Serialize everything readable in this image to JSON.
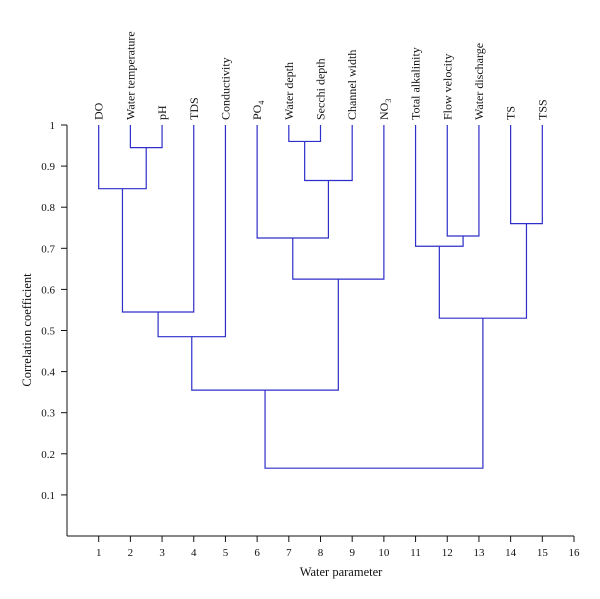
{
  "chart_data": {
    "type": "dendrogram",
    "xlabel": "Water parameter",
    "ylabel": "Correlation coefficient",
    "xlim": [
      0,
      16
    ],
    "ylim": [
      0,
      1
    ],
    "x_ticks": [
      1,
      2,
      3,
      4,
      5,
      6,
      7,
      8,
      9,
      10,
      11,
      12,
      13,
      14,
      15,
      16
    ],
    "y_ticks": [
      "0.1",
      "0.2",
      "0.3",
      "0.4",
      "0.5",
      "0.6",
      "0.7",
      "0.8",
      "0.9",
      "1"
    ],
    "link_color": "#2e2ec9",
    "leaves": [
      {
        "x": 1,
        "label": "DO"
      },
      {
        "x": 2,
        "label": "Water temperature"
      },
      {
        "x": 3,
        "label": "pH"
      },
      {
        "x": 4,
        "label": "TDS"
      },
      {
        "x": 5,
        "label": "Conductivity"
      },
      {
        "x": 6,
        "label": "PO",
        "sub": "4"
      },
      {
        "x": 7,
        "label": "Water depth"
      },
      {
        "x": 8,
        "label": "Secchi depth"
      },
      {
        "x": 9,
        "label": "Channel width"
      },
      {
        "x": 10,
        "label": "NO",
        "sub": "3"
      },
      {
        "x": 11,
        "label": "Total alkalinity"
      },
      {
        "x": 12,
        "label": "Flow velocity"
      },
      {
        "x": 13,
        "label": "Water discharge"
      },
      {
        "x": 14,
        "label": "TS"
      },
      {
        "x": 15,
        "label": "TSS"
      }
    ],
    "merges": [
      {
        "left": 2,
        "right": 3,
        "height": 0.945
      },
      {
        "left": 1,
        "right": 2.5,
        "height": 0.845
      },
      {
        "left": 1.75,
        "right": 4,
        "height": 0.545
      },
      {
        "left": 2.875,
        "right": 5,
        "height": 0.485
      },
      {
        "left": 7,
        "right": 8,
        "height": 0.96
      },
      {
        "left": 7.5,
        "right": 9,
        "height": 0.865
      },
      {
        "left": 6,
        "right": 8.25,
        "height": 0.725
      },
      {
        "left": 7.125,
        "right": 10,
        "height": 0.625
      },
      {
        "left": 3.9375,
        "right": 8.5625,
        "height": 0.355
      },
      {
        "left": 12,
        "right": 13,
        "height": 0.73
      },
      {
        "left": 11,
        "right": 12.5,
        "height": 0.705
      },
      {
        "left": 14,
        "right": 15,
        "height": 0.76
      },
      {
        "left": 11.75,
        "right": 14.5,
        "height": 0.53
      },
      {
        "left": 6.25,
        "right": 13.125,
        "height": 0.165
      }
    ]
  }
}
